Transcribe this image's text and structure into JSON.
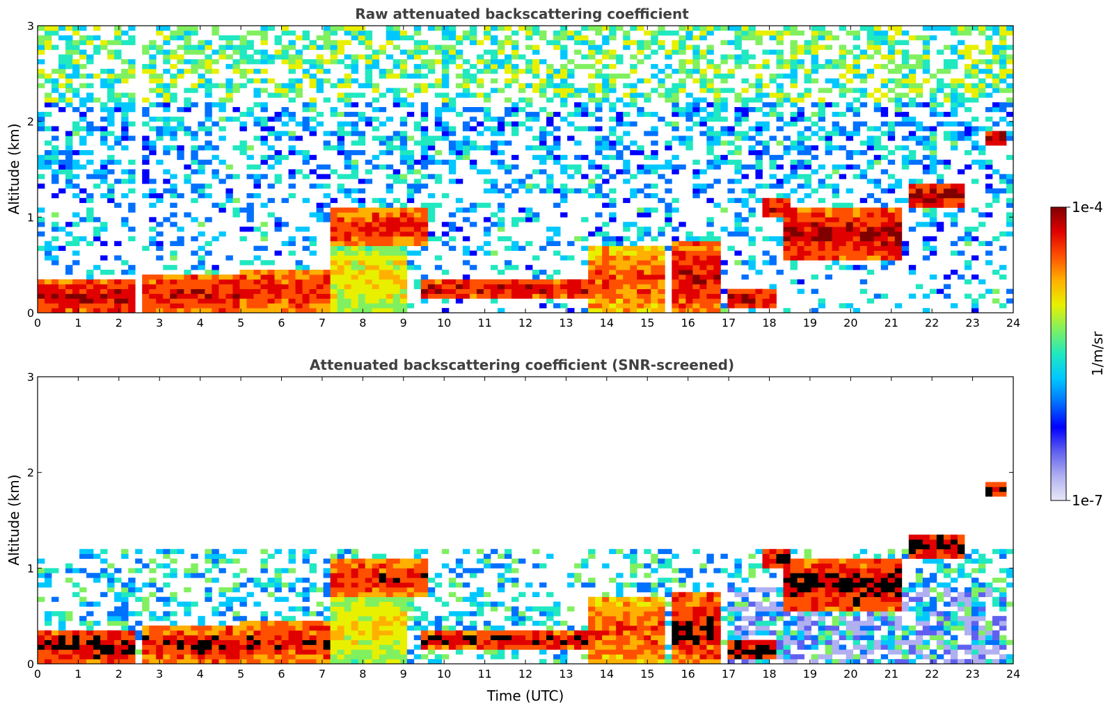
{
  "chart_data": [
    {
      "type": "heatmap",
      "title": "Raw attenuated backscattering coefficient",
      "xlabel": "",
      "ylabel": "Altitude (km)",
      "xlim": [
        0,
        24
      ],
      "ylim": [
        0,
        3
      ],
      "xticks": [
        "0",
        "1",
        "2",
        "3",
        "4",
        "5",
        "6",
        "7",
        "8",
        "9",
        "10",
        "11",
        "12",
        "13",
        "14",
        "15",
        "16",
        "17",
        "18",
        "19",
        "20",
        "21",
        "22",
        "23",
        "24"
      ],
      "yticks": [
        "0",
        "1",
        "2",
        "3"
      ],
      "regions": [
        {
          "t0": 0,
          "t1": 2.45,
          "h0": 0,
          "h1": 0.35,
          "level": 0.95
        },
        {
          "t0": 2.6,
          "t1": 5,
          "h0": 0,
          "h1": 0.4,
          "level": 0.92
        },
        {
          "t0": 5,
          "t1": 7.2,
          "h0": 0,
          "h1": 0.45,
          "level": 0.9
        },
        {
          "t0": 7.2,
          "t1": 9.0,
          "h0": 0,
          "h1": 0.7,
          "level": 0.72
        },
        {
          "t0": 7.2,
          "t1": 9.6,
          "h0": 0.7,
          "h1": 1.1,
          "level": 0.9
        },
        {
          "t0": 9.5,
          "t1": 13.5,
          "h0": 0.15,
          "h1": 0.35,
          "level": 0.94
        },
        {
          "t0": 13.5,
          "t1": 15.5,
          "h0": 0,
          "h1": 0.7,
          "level": 0.85
        },
        {
          "t0": 15.6,
          "t1": 16.8,
          "h0": 0,
          "h1": 0.75,
          "level": 0.93
        },
        {
          "t0": 17.0,
          "t1": 18.2,
          "h0": 0.05,
          "h1": 0.25,
          "level": 0.97
        },
        {
          "t0": 17.8,
          "t1": 18.5,
          "h0": 1.0,
          "h1": 1.2,
          "level": 0.97
        },
        {
          "t0": 18.3,
          "t1": 21.3,
          "h0": 0.55,
          "h1": 1.1,
          "level": 0.95
        },
        {
          "t0": 21.5,
          "t1": 22.8,
          "h0": 1.1,
          "h1": 1.35,
          "level": 0.97
        },
        {
          "t0": 23.4,
          "t1": 23.8,
          "h0": 1.75,
          "h1": 1.9,
          "level": 0.97
        }
      ]
    },
    {
      "type": "heatmap",
      "title": "Attenuated backscattering coefficient (SNR-screened)",
      "xlabel": "Time (UTC)",
      "ylabel": "Altitude (km)",
      "xlim": [
        0,
        24
      ],
      "ylim": [
        0,
        3
      ],
      "xticks": [
        "0",
        "1",
        "2",
        "3",
        "4",
        "5",
        "6",
        "7",
        "8",
        "9",
        "10",
        "11",
        "12",
        "13",
        "14",
        "15",
        "16",
        "17",
        "18",
        "19",
        "20",
        "21",
        "22",
        "23",
        "24"
      ],
      "yticks": [
        "0",
        "1",
        "2",
        "3"
      ]
    }
  ],
  "colorbar": {
    "label": "1/m/sr",
    "max_label": "1e-4",
    "min_label": "1e-7",
    "colors": [
      "#e8e8f8",
      "#b0b0f0",
      "#6060f0",
      "#0000ff",
      "#0070ff",
      "#00c8ff",
      "#20e8c0",
      "#80f060",
      "#e8f000",
      "#ffb000",
      "#ff5000",
      "#e00000",
      "#800000"
    ]
  }
}
